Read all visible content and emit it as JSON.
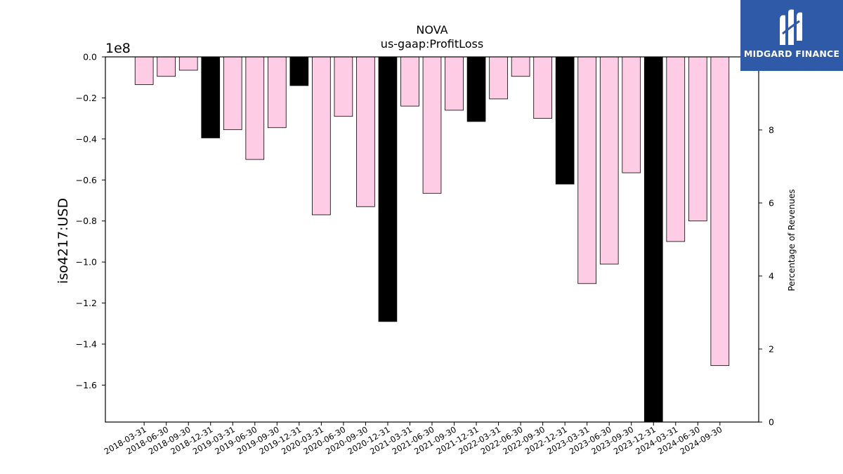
{
  "chart_data": {
    "type": "bar",
    "title": "NOVA",
    "subtitle": "us-gaap:ProfitLoss",
    "ylabel": "iso4217:USD",
    "y_offset_label": "1e8",
    "y2label": "Percentage of Revenues",
    "categories": [
      "2018-03-31",
      "2018-06-30",
      "2018-09-30",
      "2018-12-31",
      "2019-03-31",
      "2019-06-30",
      "2019-09-30",
      "2019-12-31",
      "2020-03-31",
      "2020-06-30",
      "2020-09-30",
      "2020-12-31",
      "2021-03-31",
      "2021-06-30",
      "2021-09-30",
      "2021-12-31",
      "2022-03-31",
      "2022-06-30",
      "2022-09-30",
      "2022-12-31",
      "2023-03-31",
      "2023-06-30",
      "2023-09-30",
      "2023-12-31",
      "2024-03-31",
      "2024-06-30",
      "2024-09-30"
    ],
    "values": [
      -0.135,
      -0.095,
      -0.065,
      -0.395,
      -0.355,
      -0.5,
      -0.345,
      -0.14,
      -0.77,
      -0.29,
      -0.73,
      -1.29,
      -0.24,
      -0.665,
      -0.26,
      -0.315,
      -0.205,
      -0.095,
      -0.3,
      -0.62,
      -1.105,
      -1.01,
      -0.565,
      -1.78,
      -0.9,
      -0.8,
      -1.505
    ],
    "annual": [
      false,
      false,
      false,
      true,
      false,
      false,
      false,
      true,
      false,
      false,
      false,
      true,
      false,
      false,
      false,
      true,
      false,
      false,
      false,
      true,
      false,
      false,
      false,
      true,
      false,
      false,
      false
    ],
    "ylim": [
      -1.78,
      0
    ],
    "yticks": [
      0.0,
      -0.2,
      -0.4,
      -0.6,
      -0.8,
      -1.0,
      -1.2,
      -1.4,
      -1.6
    ],
    "y2lim": [
      0,
      10
    ],
    "y2ticks": [
      0,
      2,
      4,
      6,
      8
    ],
    "colors": {
      "quarter": "#ffcce6",
      "annual": "#000000",
      "edge": "#000000"
    }
  },
  "logo": {
    "text": "MIDGARD FINANCE",
    "color": "#2f5aa8"
  }
}
